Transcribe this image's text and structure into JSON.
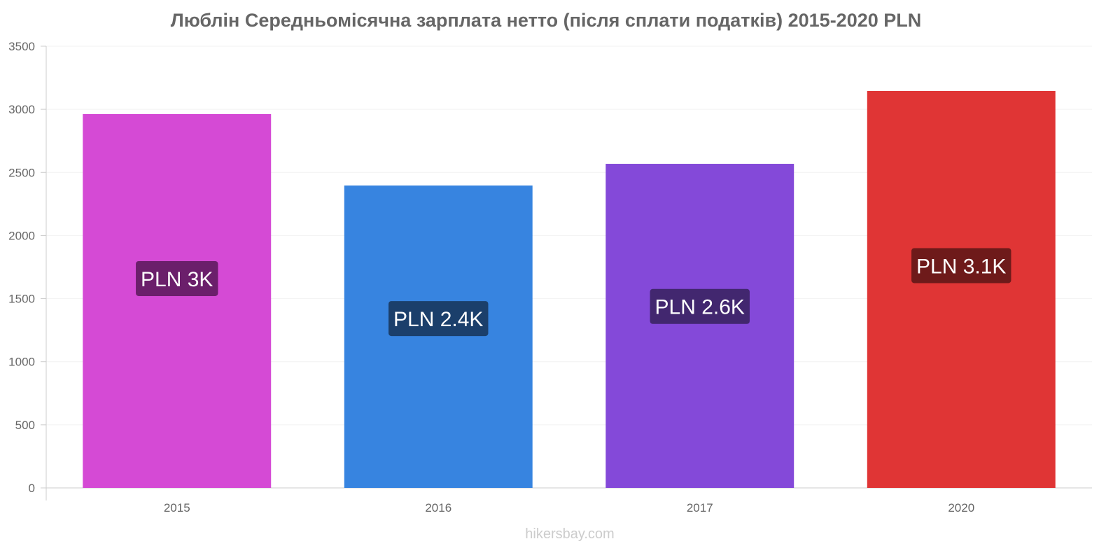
{
  "chart_data": {
    "type": "bar",
    "title": "Люблін Середньомісячна зарплата нетто (після сплати податків) 2015-2020 PLN",
    "categories": [
      "2015",
      "2016",
      "2017",
      "2020"
    ],
    "values": [
      2962,
      2396,
      2568,
      3145
    ],
    "data_labels": [
      "PLN 3K",
      "PLN 2.4K",
      "PLN 2.6K",
      "PLN 3.1K"
    ],
    "colors": [
      "#d54ad5",
      "#3784e0",
      "#8449d9",
      "#e03535"
    ],
    "label_colors": [
      "#6b1f6b",
      "#1b3f6b",
      "#42276f",
      "#6e1a1a"
    ],
    "ylim": [
      0,
      3500
    ],
    "yticks": [
      0,
      500,
      1000,
      1500,
      2000,
      2500,
      3000,
      3500
    ],
    "xlabel": "",
    "ylabel": "",
    "grid": true
  },
  "watermark": "hikersbay.com"
}
